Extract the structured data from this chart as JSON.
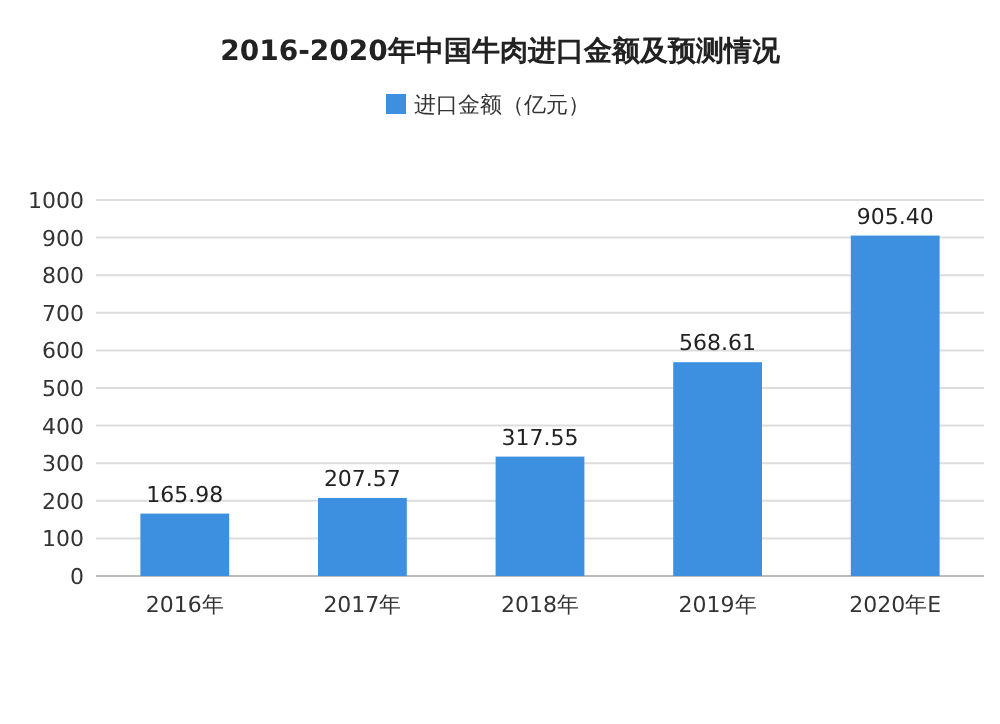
{
  "chart_data": {
    "type": "bar",
    "title": "2016-2020年中国牛肉进口金额及预测情况",
    "categories": [
      "2016年",
      "2017年",
      "2018年",
      "2019年",
      "2020年E"
    ],
    "series": [
      {
        "name": "进口金额（亿元）",
        "color": "#3d8fe0",
        "values": [
          165.98,
          207.57,
          317.55,
          568.61,
          905.4
        ],
        "value_labels": [
          "165.98",
          "207.57",
          "317.55",
          "568.61",
          "905.40"
        ]
      }
    ],
    "ylim": [
      0,
      1000
    ],
    "yticks": [
      0,
      100,
      200,
      300,
      400,
      500,
      600,
      700,
      800,
      900,
      1000
    ],
    "grid": "y",
    "legend": "top"
  }
}
